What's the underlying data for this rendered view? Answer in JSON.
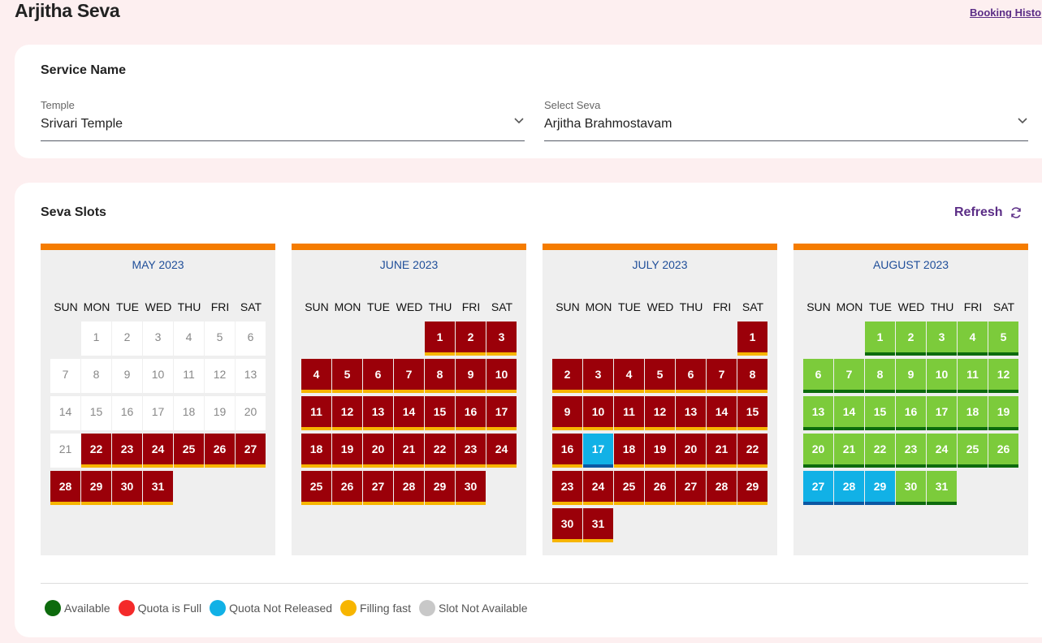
{
  "header": {
    "title": "Arjitha Seva",
    "history_link": "Booking Histo"
  },
  "service": {
    "title": "Service Name",
    "temple_label": "Temple",
    "temple_value": "Srivari Temple",
    "seva_label": "Select Seva",
    "seva_value": "Arjitha Brahmostavam"
  },
  "slots": {
    "title": "Seva Slots",
    "refresh_label": "Refresh"
  },
  "weekdays": [
    "SUN",
    "MON",
    "TUE",
    "WED",
    "THU",
    "FRI",
    "SAT"
  ],
  "calendars": [
    {
      "name": "MAY 2023",
      "start_weekday": 1,
      "days": 31,
      "status": {
        "1-21": "na",
        "22-31": "full"
      }
    },
    {
      "name": "JUNE 2023",
      "start_weekday": 4,
      "days": 30,
      "status": {
        "1-30": "full"
      }
    },
    {
      "name": "JULY 2023",
      "start_weekday": 6,
      "days": 31,
      "status": {
        "1-16": "full",
        "17": "notrel",
        "18-31": "full"
      }
    },
    {
      "name": "AUGUST 2023",
      "start_weekday": 2,
      "days": 31,
      "status": {
        "1-26": "avail",
        "27-29": "notrel",
        "30-31": "avail"
      }
    }
  ],
  "legend": [
    {
      "label": "Available",
      "color": "#0d6b0d"
    },
    {
      "label": "Quota is Full",
      "color": "#f42a2a"
    },
    {
      "label": "Quota Not Released",
      "color": "#11b1e6"
    },
    {
      "label": "Filling fast",
      "color": "#f7b500"
    },
    {
      "label": "Slot Not Available",
      "color": "#c8c8c8"
    }
  ]
}
